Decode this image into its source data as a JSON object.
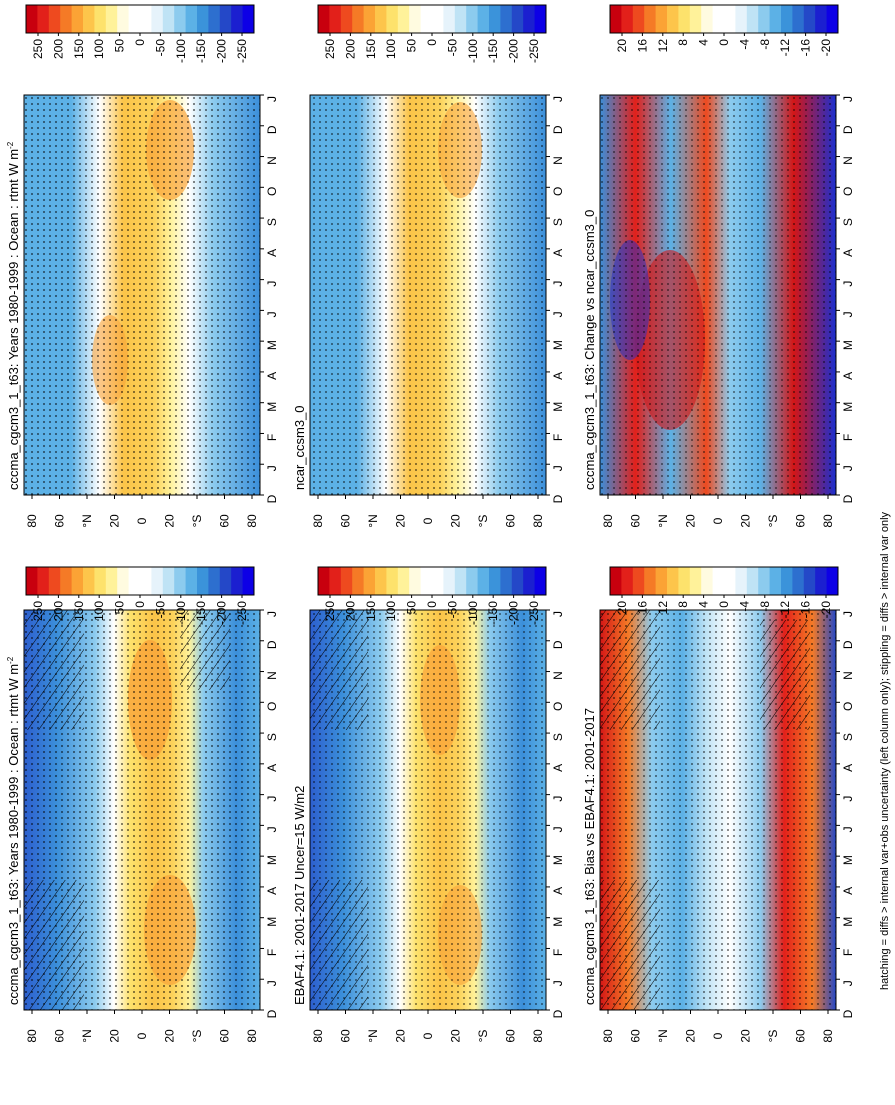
{
  "footer": "hatching = diffs > internal var+obs uncertainty (left column only); stippling = diffs > internal var only",
  "colorbar_full": {
    "labels": [
      "250",
      "200",
      "150",
      "100",
      "50",
      "0",
      "-50",
      "-100",
      "-150",
      "-200",
      "-250"
    ],
    "colors": [
      "#c8000e",
      "#e2201a",
      "#ee4a1f",
      "#f57a26",
      "#fba335",
      "#fdc54b",
      "#fde26c",
      "#fff29a",
      "#fffbe0",
      "#ffffff",
      "#ffffff",
      "#e6f3fb",
      "#bfe3f5",
      "#8ccbee",
      "#5cb1e6",
      "#3b93da",
      "#2d6fcf",
      "#2448c8",
      "#1b1fd0",
      "#0d00e6"
    ]
  },
  "colorbar_diff": {
    "labels": [
      "20",
      "16",
      "12",
      "8",
      "4",
      "0",
      "-4",
      "-8",
      "-12",
      "-16",
      "-20"
    ],
    "colors": [
      "#c8000e",
      "#e2201a",
      "#ee4a1f",
      "#f57a26",
      "#fba335",
      "#fdc54b",
      "#fde26c",
      "#fff29a",
      "#fffbe0",
      "#ffffff",
      "#ffffff",
      "#e6f3fb",
      "#bfe3f5",
      "#8ccbee",
      "#5cb1e6",
      "#3b93da",
      "#2d6fcf",
      "#2448c8",
      "#1b1fd0",
      "#0d00e6"
    ]
  },
  "axes": {
    "month_labels": [
      "D",
      "J",
      "F",
      "M",
      "A",
      "M",
      "J",
      "J",
      "A",
      "S",
      "O",
      "N",
      "D",
      "J"
    ],
    "lat_labels": [
      "80",
      "60",
      "°N",
      "20",
      "0",
      "20",
      "°S",
      "60",
      "80"
    ]
  },
  "colors": {
    "warm_core": "#f9a43a",
    "warm": "#fcd25a",
    "neutral": "#ffffff",
    "cool": "#5cb1e6",
    "cool_deep": "#2d6fcf",
    "red": "#d41616",
    "blue_deep": "#1b2fd0"
  },
  "chart_data": [
    {
      "type": "heatmap",
      "panel": "top-left",
      "title": "cccma_cgcm3_1_t63: Years 1980-1999 : Ocean : rtmt W m",
      "title_sup": "-2",
      "x": "month",
      "y": "latitude",
      "units": "W m-2",
      "range": [
        -250,
        250
      ],
      "hatching": true,
      "stippling": true
    },
    {
      "type": "heatmap",
      "panel": "top-right",
      "title": "cccma_cgcm3_1_t63: Years 1980-1999 : Ocean : rtmt W m",
      "title_sup": "-2",
      "x": "month",
      "y": "latitude",
      "units": "W m-2",
      "range": [
        -250,
        250
      ],
      "stippling": true
    },
    {
      "type": "heatmap",
      "panel": "middle-left",
      "title": "EBAF4.1: 2001-2017 Uncer=15 W/m2",
      "x": "month",
      "y": "latitude",
      "range": [
        -250,
        250
      ],
      "hatching": true,
      "stippling": true
    },
    {
      "type": "heatmap",
      "panel": "middle-right",
      "title": "ncar_ccsm3_0",
      "x": "month",
      "y": "latitude",
      "range": [
        -250,
        250
      ],
      "stippling": true
    },
    {
      "type": "heatmap",
      "panel": "bottom-left",
      "title": "cccma_cgcm3_1_t63: Bias vs EBAF4.1: 2001-2017",
      "x": "month",
      "y": "latitude",
      "range": [
        -20,
        20
      ],
      "hatching": true,
      "stippling": true
    },
    {
      "type": "heatmap",
      "panel": "bottom-right",
      "title": "cccma_cgcm3_1_t63: Change vs ncar_ccsm3_0",
      "x": "month",
      "y": "latitude",
      "range": [
        -20,
        20
      ],
      "stippling": true
    }
  ]
}
